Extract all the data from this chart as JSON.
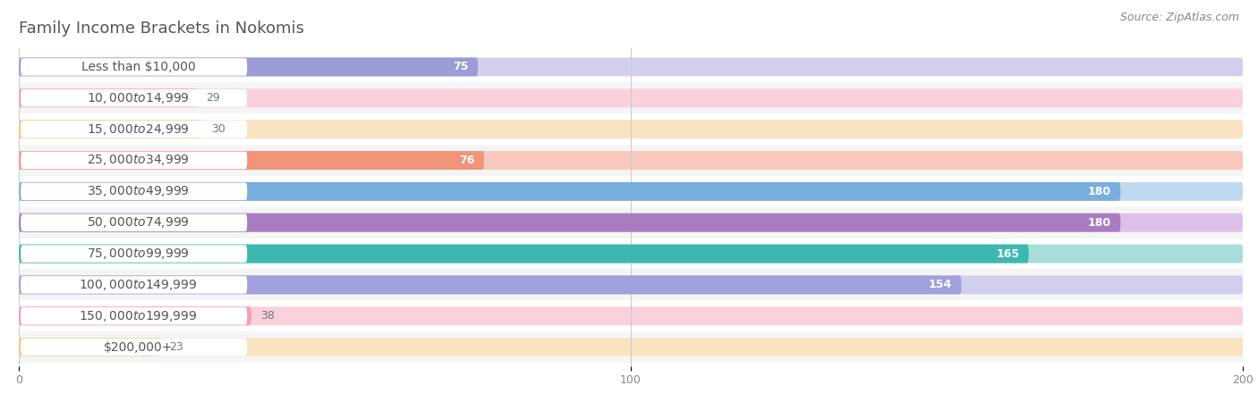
{
  "title": "Family Income Brackets in Nokomis",
  "source": "Source: ZipAtlas.com",
  "categories": [
    "Less than $10,000",
    "$10,000 to $14,999",
    "$15,000 to $24,999",
    "$25,000 to $34,999",
    "$35,000 to $49,999",
    "$50,000 to $74,999",
    "$75,000 to $99,999",
    "$100,000 to $149,999",
    "$150,000 to $199,999",
    "$200,000+"
  ],
  "values": [
    75,
    29,
    30,
    76,
    180,
    180,
    165,
    154,
    38,
    23
  ],
  "bar_colors": [
    "#9b9bd6",
    "#f4a0b5",
    "#f5c98a",
    "#f0957a",
    "#7aaede",
    "#a87cc0",
    "#3db8b0",
    "#a0a0dd",
    "#f4a0b5",
    "#f5c98a"
  ],
  "bar_bg_colors": [
    "#d0d0ee",
    "#fad0db",
    "#fae3c0",
    "#f8c8be",
    "#c0d8f0",
    "#ddc0e8",
    "#a8deda",
    "#d0d0ee",
    "#fad0db",
    "#fae3c0"
  ],
  "xlim": [
    0,
    200
  ],
  "xticks": [
    0,
    100,
    200
  ],
  "background_color": "#ffffff",
  "row_bg_even": "#ffffff",
  "row_bg_odd": "#f5f5f5",
  "title_color": "#555555",
  "label_color": "#555555",
  "value_color_inside": "#ffffff",
  "value_color_outside": "#777777",
  "title_fontsize": 13,
  "label_fontsize": 10,
  "value_fontsize": 9,
  "source_fontsize": 9,
  "inside_threshold": 50
}
